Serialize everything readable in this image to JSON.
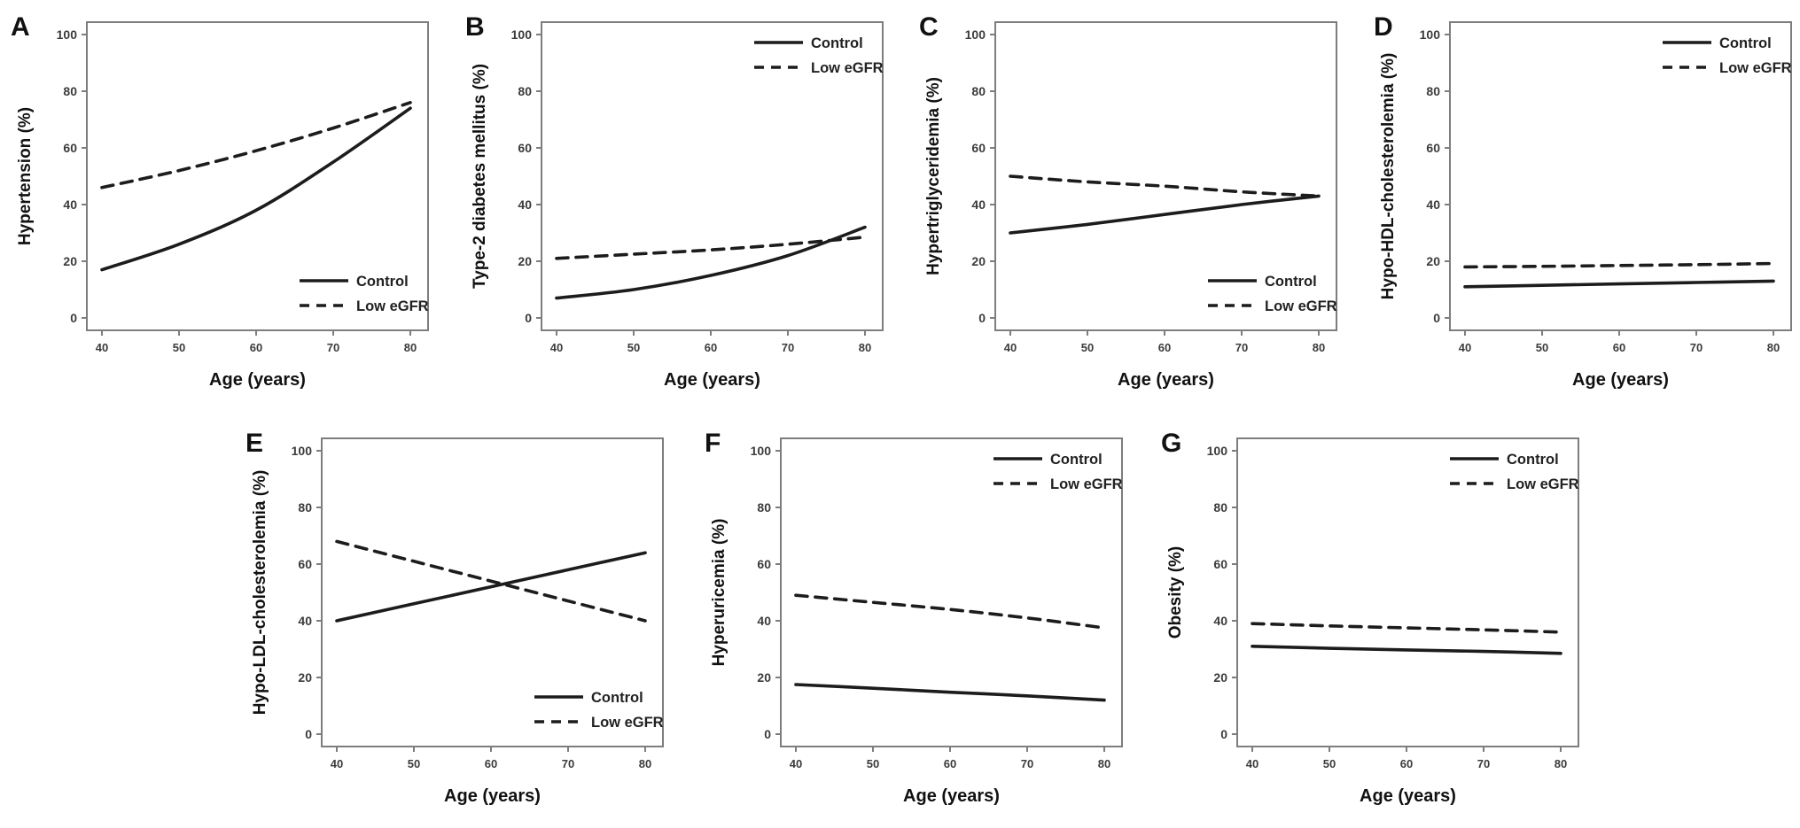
{
  "figure": {
    "background": "#ffffff",
    "colors": {
      "line": "#1c1c1c",
      "frame": "#7d7d7d",
      "tick_text": "#3b3b3b",
      "label_text": "#111111"
    },
    "legend_labels": {
      "control": "Control",
      "low_egfr": "Low eGFR"
    }
  },
  "chart_data": [
    {
      "type": "line",
      "letter": "A",
      "ylabel": "Hypertension (%)",
      "xlabel": "Age (years)",
      "xlim": [
        40,
        80
      ],
      "ylim": [
        0,
        100
      ],
      "x_ticks": [
        40,
        50,
        60,
        70,
        80
      ],
      "y_ticks": [
        0,
        20,
        40,
        60,
        80,
        100
      ],
      "legend_position": "bottom-right",
      "series": [
        {
          "name": "Control",
          "style": "solid",
          "x": [
            40,
            50,
            60,
            70,
            80
          ],
          "y": [
            17,
            26,
            38,
            55,
            74
          ]
        },
        {
          "name": "Low eGFR",
          "style": "dashed",
          "x": [
            40,
            50,
            60,
            70,
            80
          ],
          "y": [
            46,
            52,
            59,
            67,
            76
          ]
        }
      ]
    },
    {
      "type": "line",
      "letter": "B",
      "ylabel": "Type-2 diabetes mellitus (%)",
      "xlabel": "Age (years)",
      "xlim": [
        40,
        80
      ],
      "ylim": [
        0,
        100
      ],
      "x_ticks": [
        40,
        50,
        60,
        70,
        80
      ],
      "y_ticks": [
        0,
        20,
        40,
        60,
        80,
        100
      ],
      "legend_position": "top-right",
      "series": [
        {
          "name": "Control",
          "style": "solid",
          "x": [
            40,
            50,
            60,
            70,
            80
          ],
          "y": [
            7,
            10,
            15,
            22,
            32
          ]
        },
        {
          "name": "Low eGFR",
          "style": "dashed",
          "x": [
            40,
            50,
            60,
            70,
            80
          ],
          "y": [
            21,
            22.5,
            24,
            26,
            28.5
          ]
        }
      ]
    },
    {
      "type": "line",
      "letter": "C",
      "ylabel": "Hypertriglyceridemia (%)",
      "xlabel": "Age (years)",
      "xlim": [
        40,
        80
      ],
      "ylim": [
        0,
        100
      ],
      "x_ticks": [
        40,
        50,
        60,
        70,
        80
      ],
      "y_ticks": [
        0,
        20,
        40,
        60,
        80,
        100
      ],
      "legend_position": "bottom-right",
      "series": [
        {
          "name": "Control",
          "style": "solid",
          "x": [
            40,
            50,
            60,
            70,
            80
          ],
          "y": [
            30,
            33,
            36.5,
            40,
            43
          ]
        },
        {
          "name": "Low eGFR",
          "style": "dashed",
          "x": [
            40,
            50,
            60,
            70,
            80
          ],
          "y": [
            50,
            48,
            46.5,
            44.5,
            43
          ]
        }
      ]
    },
    {
      "type": "line",
      "letter": "D",
      "ylabel": "Hypo-HDL-cholesterolemia (%)",
      "xlabel": "Age (years)",
      "xlim": [
        40,
        80
      ],
      "ylim": [
        0,
        100
      ],
      "x_ticks": [
        40,
        50,
        60,
        70,
        80
      ],
      "y_ticks": [
        0,
        20,
        40,
        60,
        80,
        100
      ],
      "legend_position": "top-right",
      "series": [
        {
          "name": "Control",
          "style": "solid",
          "x": [
            40,
            50,
            60,
            70,
            80
          ],
          "y": [
            11,
            11.5,
            12,
            12.5,
            13
          ]
        },
        {
          "name": "Low eGFR",
          "style": "dashed",
          "x": [
            40,
            50,
            60,
            70,
            80
          ],
          "y": [
            18,
            18.2,
            18.5,
            18.8,
            19.2
          ]
        }
      ]
    },
    {
      "type": "line",
      "letter": "E",
      "ylabel": "Hypo-LDL-cholesterolemia (%)",
      "xlabel": "Age (years)",
      "xlim": [
        40,
        80
      ],
      "ylim": [
        0,
        100
      ],
      "x_ticks": [
        40,
        50,
        60,
        70,
        80
      ],
      "y_ticks": [
        0,
        20,
        40,
        60,
        80,
        100
      ],
      "legend_position": "bottom-right",
      "series": [
        {
          "name": "Control",
          "style": "solid",
          "x": [
            40,
            50,
            60,
            70,
            80
          ],
          "y": [
            40,
            46,
            52,
            58,
            64
          ]
        },
        {
          "name": "Low eGFR",
          "style": "dashed",
          "x": [
            40,
            50,
            60,
            70,
            80
          ],
          "y": [
            68,
            61,
            54,
            47,
            40
          ]
        }
      ]
    },
    {
      "type": "line",
      "letter": "F",
      "ylabel": "Hyperuricemia (%)",
      "xlabel": "Age (years)",
      "xlim": [
        40,
        80
      ],
      "ylim": [
        0,
        100
      ],
      "x_ticks": [
        40,
        50,
        60,
        70,
        80
      ],
      "y_ticks": [
        0,
        20,
        40,
        60,
        80,
        100
      ],
      "legend_position": "top-right",
      "series": [
        {
          "name": "Control",
          "style": "solid",
          "x": [
            40,
            50,
            60,
            70,
            80
          ],
          "y": [
            17.5,
            16.2,
            14.8,
            13.5,
            12
          ]
        },
        {
          "name": "Low eGFR",
          "style": "dashed",
          "x": [
            40,
            50,
            60,
            70,
            80
          ],
          "y": [
            49,
            46.5,
            44,
            41,
            37.5
          ]
        }
      ]
    },
    {
      "type": "line",
      "letter": "G",
      "ylabel": "Obesity (%)",
      "xlabel": "Age (years)",
      "xlim": [
        40,
        80
      ],
      "ylim": [
        0,
        100
      ],
      "x_ticks": [
        40,
        50,
        60,
        70,
        80
      ],
      "y_ticks": [
        0,
        20,
        40,
        60,
        80,
        100
      ],
      "legend_position": "top-right",
      "series": [
        {
          "name": "Control",
          "style": "solid",
          "x": [
            40,
            50,
            60,
            70,
            80
          ],
          "y": [
            31,
            30.3,
            29.7,
            29.2,
            28.5
          ]
        },
        {
          "name": "Low eGFR",
          "style": "dashed",
          "x": [
            40,
            50,
            60,
            70,
            80
          ],
          "y": [
            39,
            38.2,
            37.5,
            36.8,
            36
          ]
        }
      ]
    }
  ]
}
